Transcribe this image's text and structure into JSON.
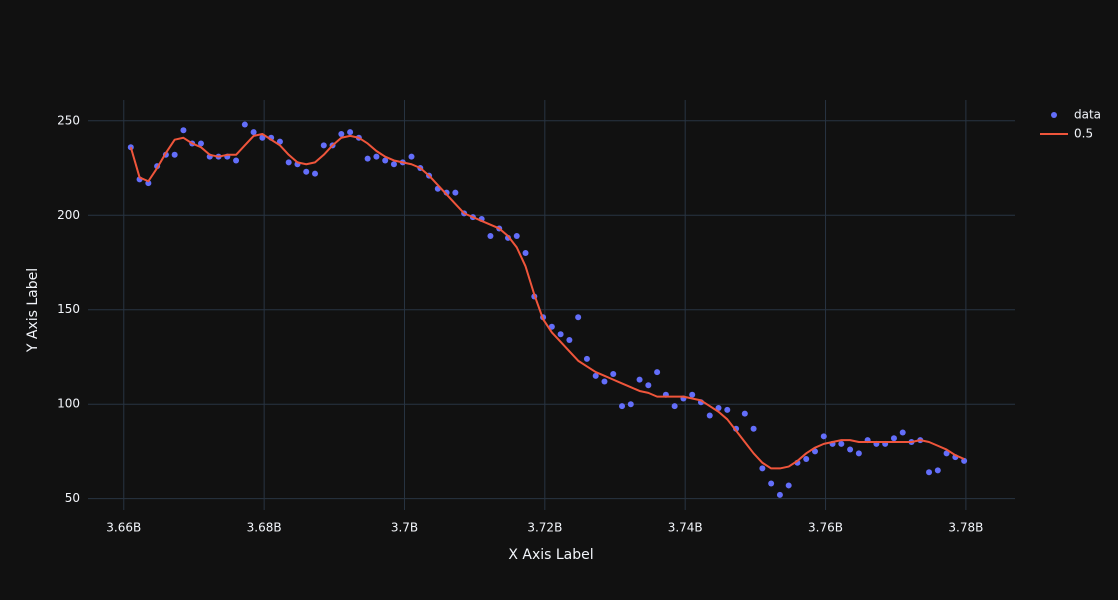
{
  "chart_data": {
    "type": "scatter",
    "x_label": "X Axis Label",
    "y_label": "Y Axis Label",
    "x": [
      3661000000,
      3662250000,
      3663500000,
      3664750000,
      3666000000,
      3667250000,
      3668500000,
      3669750000,
      3671000000,
      3672250000,
      3673500000,
      3674750000,
      3676000000,
      3677250000,
      3678500000,
      3679750000,
      3681000000,
      3682250000,
      3683500000,
      3684750000,
      3686000000,
      3687250000,
      3688500000,
      3689750000,
      3691000000,
      3692250000,
      3693500000,
      3694750000,
      3696000000,
      3697250000,
      3698500000,
      3699750000,
      3701000000,
      3702250000,
      3703500000,
      3704750000,
      3706000000,
      3707250000,
      3708500000,
      3709750000,
      3711000000,
      3712250000,
      3713500000,
      3714750000,
      3716000000,
      3717250000,
      3718500000,
      3719750000,
      3721000000,
      3722250000,
      3723500000,
      3724750000,
      3726000000,
      3727250000,
      3728500000,
      3729750000,
      3731000000,
      3732250000,
      3733500000,
      3734750000,
      3736000000,
      3737250000,
      3738500000,
      3739750000,
      3741000000,
      3742250000,
      3743500000,
      3744750000,
      3746000000,
      3747250000,
      3748500000,
      3749750000,
      3751000000,
      3752250000,
      3753500000,
      3754750000,
      3756000000,
      3757250000,
      3758500000,
      3759750000,
      3761000000,
      3762250000,
      3763500000,
      3764750000,
      3766000000,
      3767250000,
      3768500000,
      3769750000,
      3771000000,
      3772250000,
      3773500000,
      3774750000,
      3776000000,
      3777250000,
      3778500000,
      3779750000
    ],
    "series": [
      {
        "name": "data",
        "mode": "markers",
        "color": "#636efa",
        "values": [
          236,
          219,
          217,
          226,
          232,
          232,
          245,
          238,
          238,
          231,
          231,
          231,
          229,
          248,
          244,
          241,
          241,
          239,
          228,
          227,
          223,
          222,
          237,
          237,
          243,
          244,
          241,
          230,
          231,
          229,
          227,
          228,
          231,
          225,
          221,
          214,
          212,
          212,
          201,
          199,
          198,
          189,
          193,
          188,
          189,
          180,
          157,
          146,
          141,
          137,
          134,
          146,
          124,
          115,
          112,
          116,
          99,
          100,
          113,
          110,
          117,
          105,
          99,
          103,
          105,
          101,
          94,
          98,
          97,
          87,
          95,
          87,
          66,
          58,
          52,
          57,
          69,
          71,
          75,
          83,
          79,
          79,
          76,
          74,
          81,
          79,
          79,
          82,
          85,
          80,
          81,
          64,
          65,
          74,
          72,
          70
        ]
      },
      {
        "name": "0.5",
        "mode": "lines",
        "color": "#ef553b",
        "values": [
          236,
          220,
          218,
          225,
          233,
          240,
          241,
          238,
          236,
          232,
          231,
          232,
          232,
          237,
          242,
          243,
          240,
          237,
          232,
          228,
          227,
          228,
          232,
          237,
          241,
          242,
          241,
          238,
          234,
          231,
          229,
          228,
          227,
          225,
          221,
          216,
          211,
          206,
          201,
          199,
          197,
          195,
          193,
          189,
          183,
          173,
          158,
          145,
          138,
          133,
          128,
          123,
          120,
          117,
          115,
          113,
          111,
          109,
          107,
          106,
          104,
          104,
          104,
          104,
          103,
          102,
          99,
          96,
          92,
          86,
          80,
          74,
          69,
          66,
          66,
          67,
          70,
          74,
          77,
          79,
          80,
          81,
          81,
          80,
          80,
          80,
          80,
          80,
          80,
          80,
          81,
          80,
          78,
          76,
          73,
          71
        ]
      }
    ],
    "xlim": [
      3654900000,
      3787000000
    ],
    "xticks": [
      {
        "value": 3660000000,
        "label": "3.66B"
      },
      {
        "value": 3680000000,
        "label": "3.68B"
      },
      {
        "value": 3700000000,
        "label": "3.7B"
      },
      {
        "value": 3720000000,
        "label": "3.72B"
      },
      {
        "value": 3740000000,
        "label": "3.74B"
      },
      {
        "value": 3760000000,
        "label": "3.76B"
      },
      {
        "value": 3780000000,
        "label": "3.78B"
      }
    ],
    "ylim": [
      44,
      261
    ],
    "yticks": [
      50,
      100,
      150,
      200,
      250
    ],
    "grid": true
  }
}
